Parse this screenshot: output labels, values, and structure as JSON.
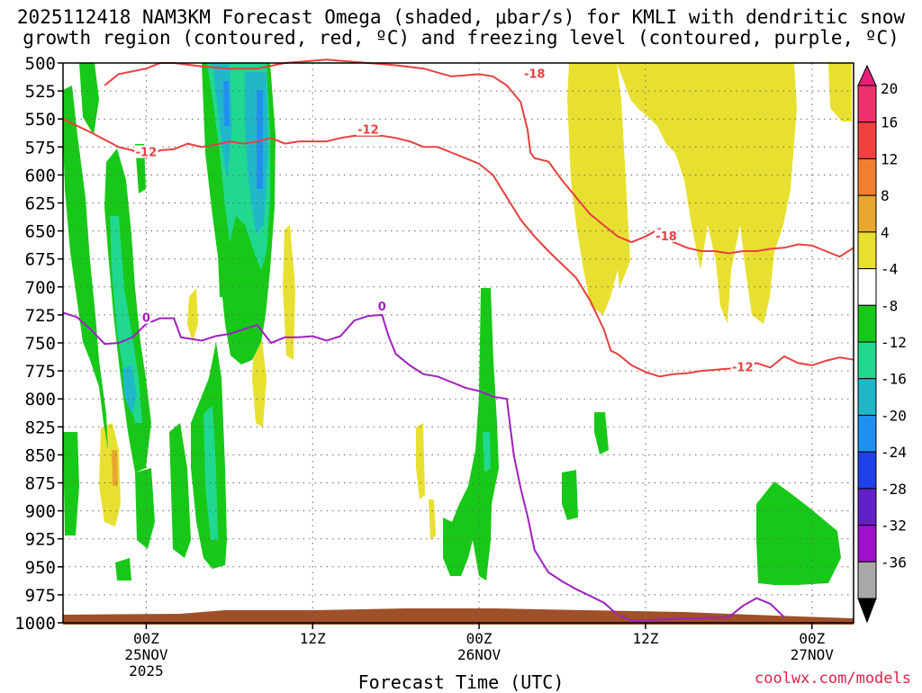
{
  "chart_data": {
    "type": "heatmap",
    "title": [
      "2025112418 NAM3KM Forecast Omega (shaded, μbar/s) for KMLI with dendritic snow",
      "growth region (contoured, red, ºC) and freezing level (contoured, purple, ºC)"
    ],
    "xlabel": "Forecast Time (UTC)",
    "credit": "coolwx.com/models",
    "y_axis": {
      "unit": "hPa",
      "inverted": true,
      "range": [
        500,
        1000
      ],
      "ticks": [
        500,
        525,
        550,
        575,
        600,
        625,
        650,
        675,
        700,
        725,
        750,
        775,
        800,
        825,
        850,
        875,
        900,
        925,
        950,
        975,
        1000
      ]
    },
    "x_axis": {
      "unit": "hours",
      "range": [
        -6,
        51
      ],
      "ticks": [
        {
          "hour": 0,
          "lines": [
            "00Z",
            "25NOV",
            "2025"
          ]
        },
        {
          "hour": 12,
          "lines": [
            "12Z"
          ]
        },
        {
          "hour": 24,
          "lines": [
            "00Z",
            "26NOV"
          ]
        },
        {
          "hour": 36,
          "lines": [
            "12Z"
          ]
        },
        {
          "hour": 48,
          "lines": [
            "00Z",
            "27NOV"
          ]
        }
      ],
      "grid": true
    },
    "colorbar": {
      "labels": [
        20,
        16,
        12,
        8,
        4,
        -4,
        -8,
        -12,
        -16,
        -20,
        -24,
        -28,
        -32,
        -36
      ],
      "colors": [
        "#f0306a",
        "#f04040",
        "#f08030",
        "#e8a830",
        "#e8e030",
        "#ffffff",
        "#18c818",
        "#20d890",
        "#20b8c8",
        "#2090f0",
        "#2040e8",
        "#6020c8",
        "#a010c8",
        "#a8a8a8"
      ]
    },
    "contour_labels": [
      {
        "text": "-12",
        "color": "#e84040",
        "hour": 0,
        "hpa": 580
      },
      {
        "text": "-12",
        "color": "#e84040",
        "hour": 16,
        "hpa": 560
      },
      {
        "text": "-18",
        "color": "#e84040",
        "hour": 28,
        "hpa": 510
      },
      {
        "text": "-18",
        "color": "#e84040",
        "hour": 37.5,
        "hpa": 655
      },
      {
        "text": "-12",
        "color": "#e84040",
        "hour": 43,
        "hpa": 772
      },
      {
        "text": "0",
        "color": "#a020c0",
        "hour": 0,
        "hpa": 728
      },
      {
        "text": "0",
        "color": "#a020c0",
        "hour": 17,
        "hpa": 718
      }
    ],
    "series": [
      {
        "contour": "dgz_minus12",
        "color": "#e84040",
        "points": [
          [
            -6,
            550
          ],
          [
            -4,
            562
          ],
          [
            -2,
            575
          ],
          [
            -1,
            578
          ],
          [
            0,
            585
          ],
          [
            1,
            578
          ],
          [
            2,
            577
          ],
          [
            3,
            572
          ],
          [
            4,
            575
          ],
          [
            5,
            573
          ],
          [
            6,
            570
          ],
          [
            7,
            572
          ],
          [
            8,
            570
          ],
          [
            9,
            567
          ],
          [
            10,
            572
          ],
          [
            11,
            570
          ],
          [
            12,
            570
          ],
          [
            13,
            570
          ],
          [
            14,
            567
          ],
          [
            15,
            565
          ],
          [
            16,
            565
          ],
          [
            17,
            565
          ],
          [
            18,
            567
          ],
          [
            19,
            570
          ],
          [
            20,
            575
          ],
          [
            21,
            575
          ],
          [
            22,
            580
          ],
          [
            23,
            585
          ],
          [
            24,
            590
          ],
          [
            25,
            600
          ],
          [
            26,
            620
          ],
          [
            27,
            640
          ],
          [
            28,
            655
          ],
          [
            29,
            668
          ],
          [
            30,
            680
          ],
          [
            31,
            692
          ],
          [
            32,
            712
          ],
          [
            33,
            738
          ],
          [
            33.5,
            757
          ],
          [
            34,
            760
          ],
          [
            35,
            770
          ],
          [
            36,
            776
          ],
          [
            37,
            780
          ],
          [
            38,
            778
          ],
          [
            39,
            777
          ],
          [
            40,
            775
          ],
          [
            41,
            774
          ],
          [
            42,
            773
          ],
          [
            43,
            772
          ],
          [
            44,
            768
          ],
          [
            45,
            772
          ],
          [
            46,
            762
          ],
          [
            47,
            768
          ],
          [
            48,
            770
          ],
          [
            49,
            766
          ],
          [
            50,
            763
          ],
          [
            51,
            765
          ]
        ]
      },
      {
        "contour": "dgz_minus18",
        "color": "#e84040",
        "points": [
          [
            -3,
            520
          ],
          [
            -2,
            510
          ],
          [
            0,
            505
          ],
          [
            1,
            500
          ],
          [
            2,
            500
          ],
          [
            4,
            503
          ],
          [
            6,
            505
          ],
          [
            8,
            505
          ],
          [
            10,
            500
          ],
          [
            13,
            497
          ],
          [
            16,
            500
          ],
          [
            18,
            502
          ],
          [
            20,
            505
          ],
          [
            22,
            512
          ],
          [
            24,
            510
          ],
          [
            25,
            512
          ],
          [
            26,
            520
          ],
          [
            27,
            535
          ],
          [
            27.5,
            560
          ],
          [
            27.7,
            580
          ],
          [
            28,
            585
          ],
          [
            29,
            588
          ],
          [
            30,
            605
          ],
          [
            31,
            620
          ],
          [
            32,
            635
          ],
          [
            33,
            645
          ],
          [
            34,
            655
          ],
          [
            35,
            660
          ],
          [
            36,
            655
          ],
          [
            37,
            648
          ],
          [
            38,
            660
          ],
          [
            39,
            665
          ],
          [
            40,
            668
          ],
          [
            41,
            668
          ],
          [
            42,
            670
          ],
          [
            43,
            668
          ],
          [
            44,
            668
          ],
          [
            45,
            666
          ],
          [
            46,
            665
          ],
          [
            47,
            662
          ],
          [
            48,
            663
          ],
          [
            49,
            668
          ],
          [
            50,
            673
          ],
          [
            51,
            665
          ]
        ]
      },
      {
        "contour": "freezing_level_0C",
        "color": "#a020c0",
        "points": [
          [
            -6,
            723
          ],
          [
            -5,
            727
          ],
          [
            -4,
            738
          ],
          [
            -3,
            751
          ],
          [
            -2,
            750
          ],
          [
            -1,
            745
          ],
          [
            0,
            733
          ],
          [
            1,
            728
          ],
          [
            2,
            728
          ],
          [
            2.5,
            745
          ],
          [
            3,
            746
          ],
          [
            4,
            748
          ],
          [
            5,
            744
          ],
          [
            6,
            742
          ],
          [
            7,
            738
          ],
          [
            8,
            734
          ],
          [
            9,
            750
          ],
          [
            10,
            745
          ],
          [
            11,
            745
          ],
          [
            12,
            744
          ],
          [
            13,
            748
          ],
          [
            14,
            744
          ],
          [
            15,
            730
          ],
          [
            16,
            726
          ],
          [
            17,
            725
          ],
          [
            17.5,
            745
          ],
          [
            18,
            760
          ],
          [
            19,
            770
          ],
          [
            20,
            778
          ],
          [
            21,
            780
          ],
          [
            22,
            785
          ],
          [
            23,
            790
          ],
          [
            24,
            793
          ],
          [
            25,
            798
          ],
          [
            26,
            800
          ],
          [
            26.5,
            850
          ],
          [
            27,
            880
          ],
          [
            27.5,
            905
          ],
          [
            28,
            935
          ],
          [
            29,
            955
          ],
          [
            30,
            963
          ],
          [
            31,
            970
          ],
          [
            32,
            976
          ],
          [
            33,
            982
          ],
          [
            34,
            993
          ],
          [
            35,
            998
          ],
          [
            42,
            995
          ],
          [
            43,
            985
          ],
          [
            44,
            978
          ],
          [
            45,
            983
          ],
          [
            46,
            995
          ]
        ]
      }
    ]
  }
}
